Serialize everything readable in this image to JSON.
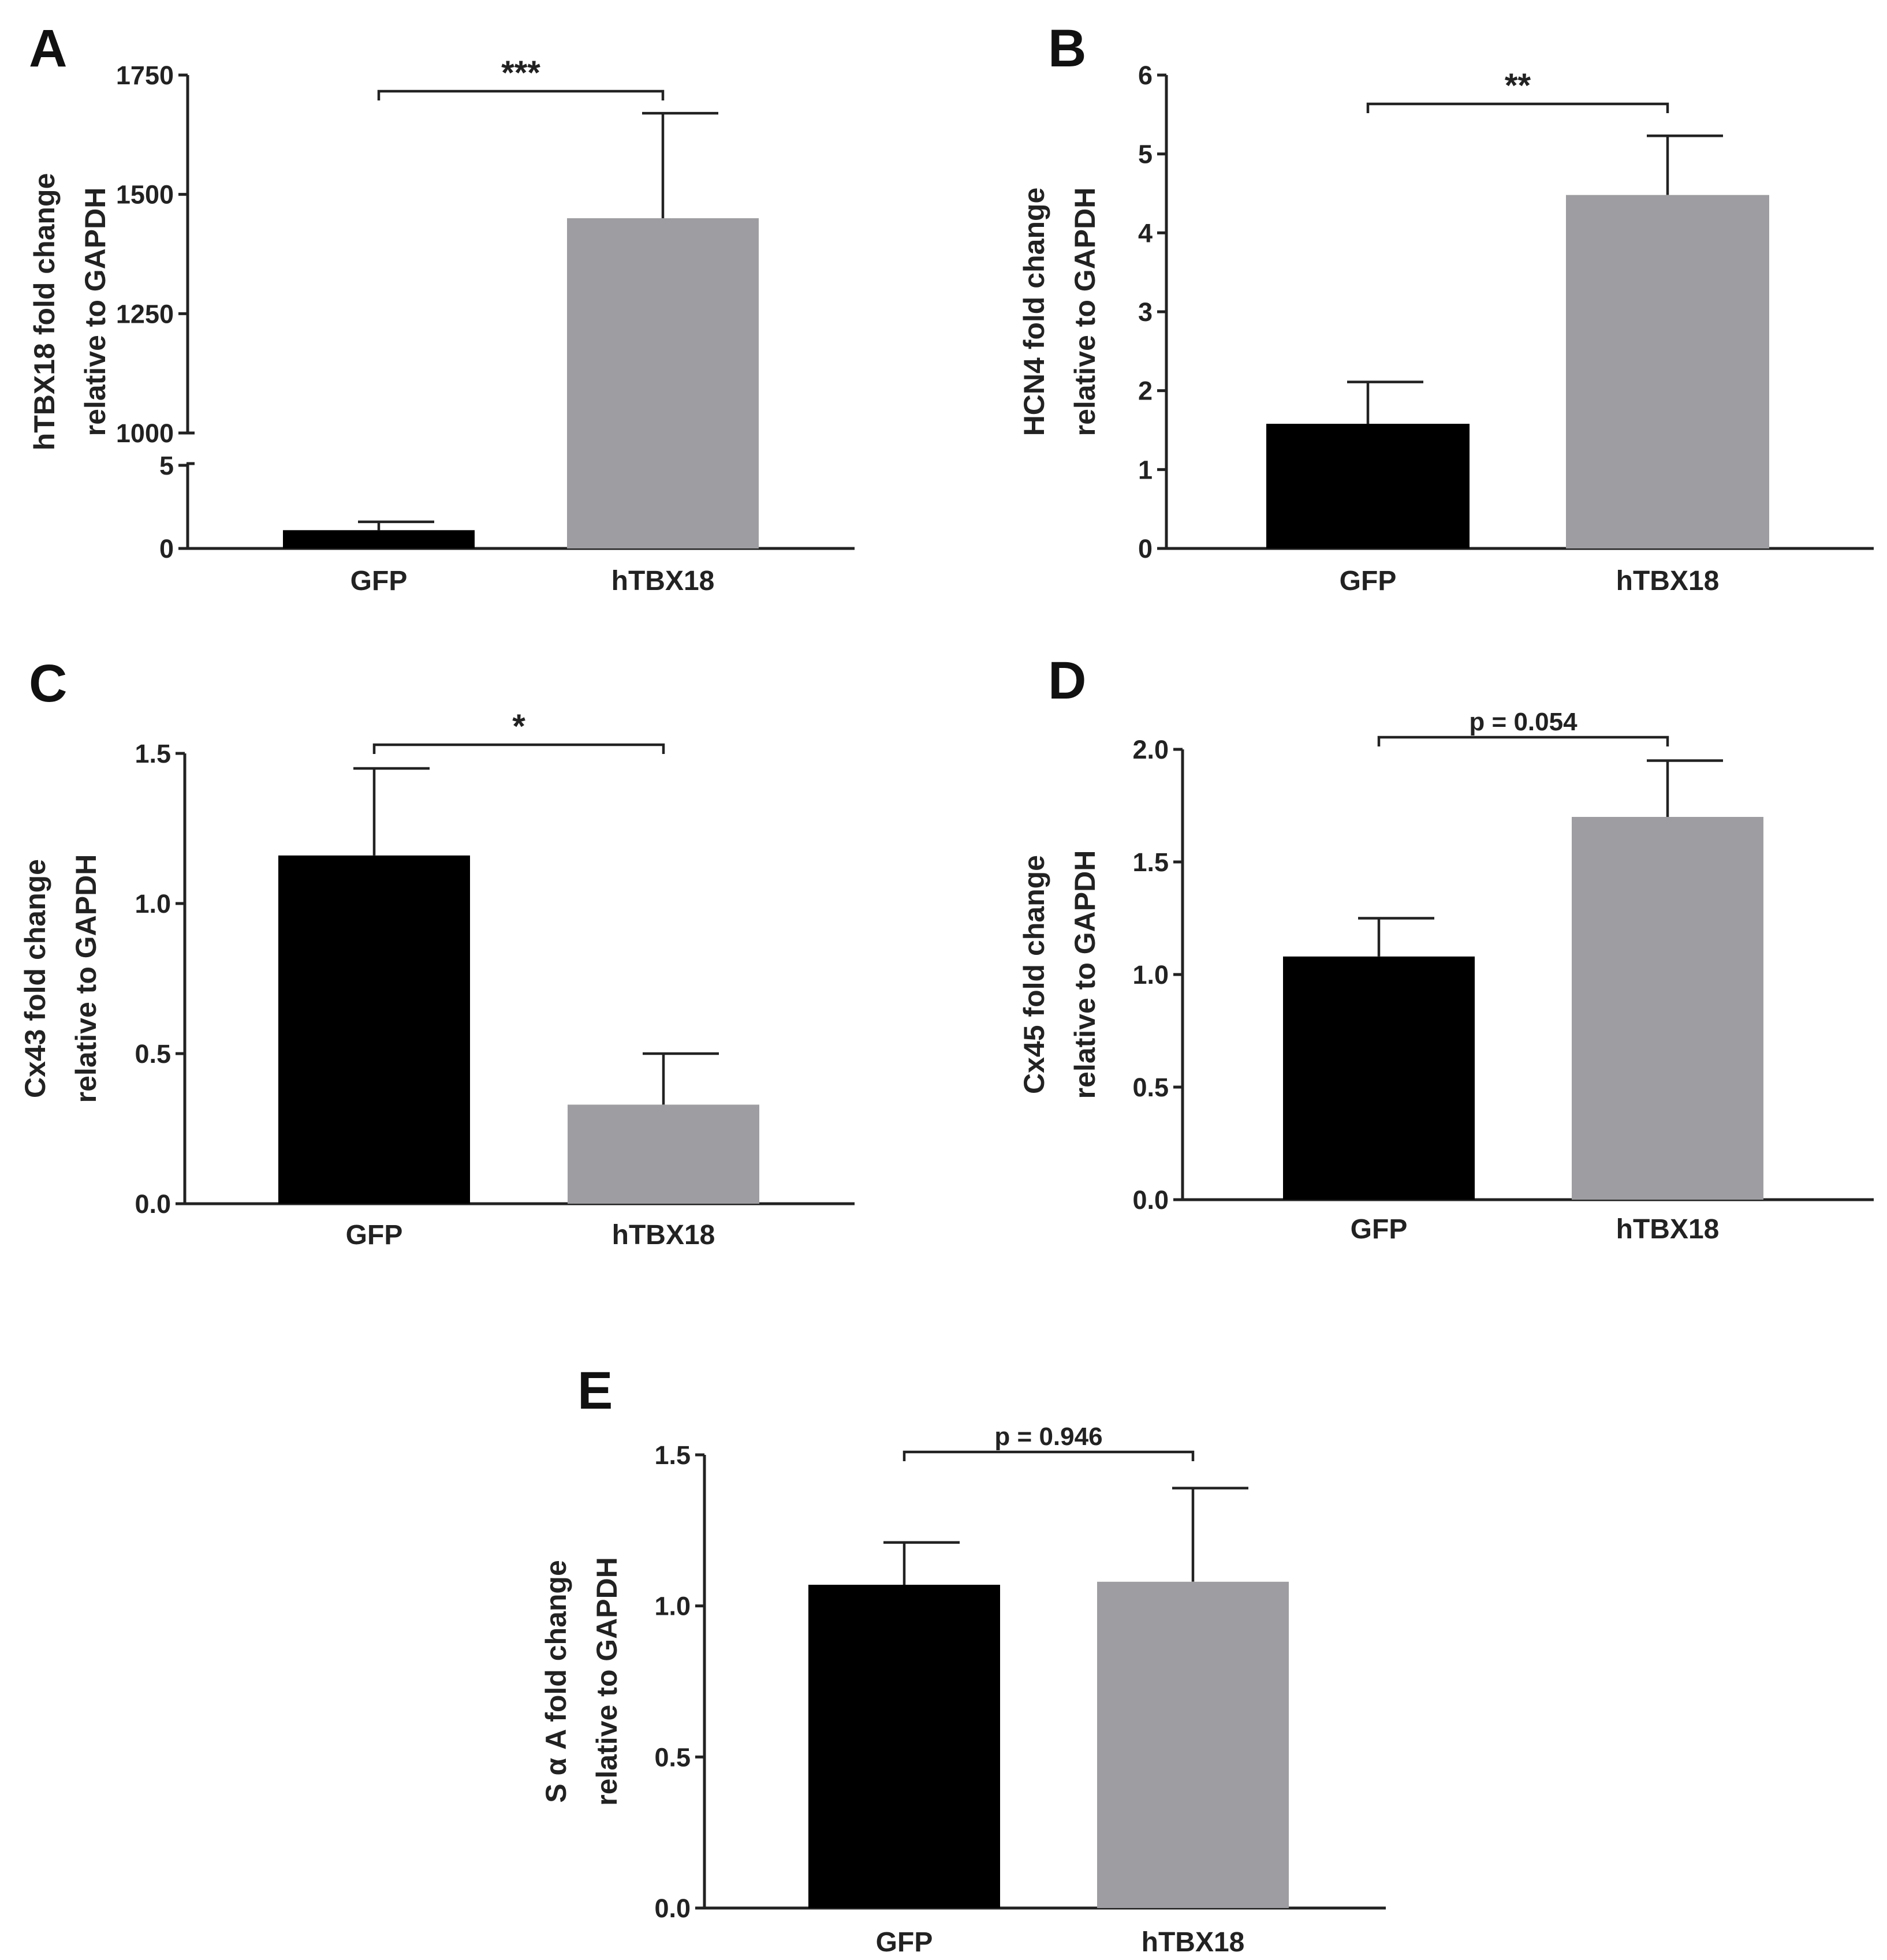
{
  "colors": {
    "gfp_bar": "#000000",
    "htbx18_bar": "#9e9ea2",
    "axis": "#222222"
  },
  "chart_data": [
    {
      "panel": "A",
      "type": "bar",
      "ylabel_lines": [
        "hTBX18 fold change",
        "relative to GAPDH"
      ],
      "categories": [
        "GFP",
        "hTBX18"
      ],
      "values": [
        1.1,
        1450
      ],
      "errors": [
        0.5,
        220
      ],
      "axis_break": {
        "lower": [
          0,
          5
        ],
        "upper": [
          1000,
          1750
        ]
      },
      "lower_ticks": [
        "0",
        "5"
      ],
      "upper_ticks": [
        "1000",
        "1250",
        "1500",
        "1750"
      ],
      "significance": "***"
    },
    {
      "panel": "B",
      "type": "bar",
      "ylabel_lines": [
        "HCN4 fold change",
        "relative to GAPDH"
      ],
      "categories": [
        "GFP",
        "hTBX18"
      ],
      "values": [
        1.58,
        4.48
      ],
      "errors": [
        0.53,
        0.75
      ],
      "ylim": [
        0,
        6
      ],
      "ticks": [
        "0",
        "1",
        "2",
        "3",
        "4",
        "5",
        "6"
      ],
      "significance": "**"
    },
    {
      "panel": "C",
      "type": "bar",
      "ylabel_lines": [
        "Cx43 fold change",
        "relative to GAPDH"
      ],
      "categories": [
        "GFP",
        "hTBX18"
      ],
      "values": [
        1.16,
        0.33
      ],
      "errors": [
        0.29,
        0.17
      ],
      "ylim": [
        0,
        1.5
      ],
      "ticks": [
        "0.0",
        "0.5",
        "1.0",
        "1.5"
      ],
      "significance": "*"
    },
    {
      "panel": "D",
      "type": "bar",
      "ylabel_lines": [
        "Cx45 fold change",
        "relative to GAPDH"
      ],
      "categories": [
        "GFP",
        "hTBX18"
      ],
      "values": [
        1.08,
        1.7
      ],
      "errors": [
        0.17,
        0.25
      ],
      "ylim": [
        0,
        2.0
      ],
      "ticks": [
        "0.0",
        "0.5",
        "1.0",
        "1.5",
        "2.0"
      ],
      "significance": "p = 0.054"
    },
    {
      "panel": "E",
      "type": "bar",
      "ylabel_lines": [
        "S α A fold change",
        "relative to GAPDH"
      ],
      "categories": [
        "GFP",
        "hTBX18"
      ],
      "values": [
        1.07,
        1.08
      ],
      "errors": [
        0.14,
        0.31
      ],
      "ylim": [
        0,
        1.5
      ],
      "ticks": [
        "0.0",
        "0.5",
        "1.0",
        "1.5"
      ],
      "significance": "p = 0.946"
    }
  ]
}
